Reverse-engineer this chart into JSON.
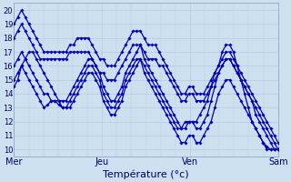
{
  "xlabel": "Température (°c)",
  "xlim": [
    0,
    72
  ],
  "ylim": [
    9.5,
    20.5
  ],
  "yticks": [
    10,
    11,
    12,
    13,
    14,
    15,
    16,
    17,
    18,
    19,
    20
  ],
  "day_labels": [
    "Mer",
    "Jeu",
    "Ven",
    "Sam"
  ],
  "day_positions": [
    0,
    24,
    48,
    72
  ],
  "background_color": "#cde0ef",
  "grid_color": "#b0c8dc",
  "line_color": "#0000bb",
  "markersize": 1.8,
  "linewidth": 0.9,
  "series": [
    [
      15.0,
      15.5,
      16.0,
      15.5,
      15.0,
      14.5,
      14.0,
      13.5,
      13.0,
      13.2,
      13.5,
      13.5,
      13.2,
      13.0,
      13.0,
      13.0,
      13.5,
      14.0,
      14.5,
      15.0,
      15.5,
      15.5,
      15.0,
      14.5,
      13.5,
      13.0,
      12.5,
      12.5,
      13.0,
      13.5,
      14.5,
      15.0,
      15.5,
      16.0,
      16.5,
      15.5,
      15.0,
      14.5,
      14.0,
      13.5,
      13.0,
      12.5,
      12.0,
      11.5,
      11.0,
      10.5,
      10.5,
      11.0,
      11.0,
      10.5,
      10.5,
      11.0,
      11.5,
      12.0,
      13.0,
      14.0,
      14.5,
      15.0,
      15.0,
      14.5,
      14.0,
      13.5,
      13.0,
      12.5,
      12.0,
      11.5,
      11.0,
      10.5,
      10.2,
      10.0,
      10.0,
      10.0
    ],
    [
      16.0,
      16.5,
      17.0,
      16.5,
      16.0,
      15.5,
      15.0,
      14.5,
      14.0,
      14.0,
      13.5,
      13.5,
      13.5,
      13.5,
      13.5,
      14.0,
      14.5,
      15.0,
      15.5,
      16.0,
      16.5,
      16.5,
      16.0,
      15.5,
      14.5,
      14.0,
      13.5,
      13.5,
      14.0,
      14.5,
      15.5,
      16.0,
      16.5,
      17.0,
      17.5,
      16.5,
      16.0,
      15.5,
      15.0,
      14.5,
      14.0,
      13.5,
      13.0,
      12.5,
      12.0,
      11.5,
      11.5,
      12.0,
      12.0,
      11.5,
      11.5,
      12.0,
      12.5,
      13.5,
      14.5,
      15.5,
      16.0,
      16.5,
      16.5,
      16.0,
      15.5,
      15.0,
      14.5,
      14.0,
      13.5,
      12.5,
      12.0,
      11.5,
      11.0,
      10.5,
      10.0,
      10.0
    ],
    [
      18.0,
      18.5,
      19.0,
      18.5,
      18.0,
      17.5,
      17.0,
      16.5,
      16.5,
      16.5,
      16.5,
      16.5,
      16.5,
      16.5,
      16.5,
      17.0,
      17.0,
      17.0,
      17.0,
      17.0,
      17.0,
      16.5,
      16.0,
      15.5,
      15.5,
      15.0,
      15.0,
      15.0,
      15.5,
      16.0,
      16.5,
      17.0,
      17.5,
      17.5,
      17.5,
      17.0,
      16.5,
      16.5,
      16.5,
      16.0,
      16.0,
      15.5,
      15.0,
      14.5,
      14.0,
      13.5,
      13.5,
      14.0,
      14.0,
      13.5,
      13.5,
      13.5,
      14.0,
      14.5,
      15.0,
      15.5,
      16.0,
      16.5,
      16.5,
      16.0,
      15.5,
      15.0,
      14.5,
      14.0,
      13.5,
      13.0,
      12.5,
      12.0,
      11.5,
      11.0,
      10.5,
      10.0
    ],
    [
      19.0,
      19.5,
      20.0,
      19.5,
      19.0,
      18.5,
      18.0,
      17.5,
      17.0,
      17.0,
      17.0,
      17.0,
      17.0,
      17.0,
      17.0,
      17.5,
      17.5,
      18.0,
      18.0,
      18.0,
      18.0,
      17.5,
      17.0,
      16.5,
      16.5,
      16.0,
      16.0,
      16.0,
      16.5,
      17.0,
      17.5,
      18.0,
      18.5,
      18.5,
      18.5,
      18.0,
      17.5,
      17.5,
      17.5,
      17.0,
      16.5,
      16.0,
      15.5,
      15.0,
      14.5,
      14.0,
      14.0,
      14.5,
      14.5,
      14.0,
      14.0,
      14.0,
      14.5,
      15.0,
      15.5,
      16.0,
      16.5,
      17.0,
      17.0,
      16.5,
      16.0,
      15.5,
      15.0,
      14.5,
      14.0,
      13.5,
      13.0,
      12.5,
      12.0,
      11.5,
      11.0,
      10.5
    ],
    [
      14.5,
      15.0,
      16.0,
      16.5,
      17.0,
      17.0,
      16.5,
      16.0,
      15.5,
      15.0,
      14.5,
      14.0,
      13.5,
      13.0,
      13.0,
      13.5,
      14.0,
      14.5,
      15.0,
      15.5,
      16.0,
      16.0,
      15.5,
      15.0,
      14.0,
      13.5,
      13.0,
      13.0,
      13.5,
      14.0,
      15.0,
      15.5,
      16.0,
      16.5,
      16.5,
      16.0,
      15.5,
      15.0,
      14.5,
      14.0,
      13.5,
      13.0,
      12.5,
      12.0,
      11.5,
      11.5,
      12.0,
      12.0,
      12.0,
      12.0,
      12.5,
      13.0,
      13.5,
      14.5,
      15.5,
      16.0,
      17.0,
      17.5,
      17.5,
      17.0,
      16.0,
      15.0,
      14.0,
      13.0,
      12.0,
      11.5,
      11.0,
      10.5,
      10.0,
      10.0,
      10.0,
      10.0
    ]
  ]
}
